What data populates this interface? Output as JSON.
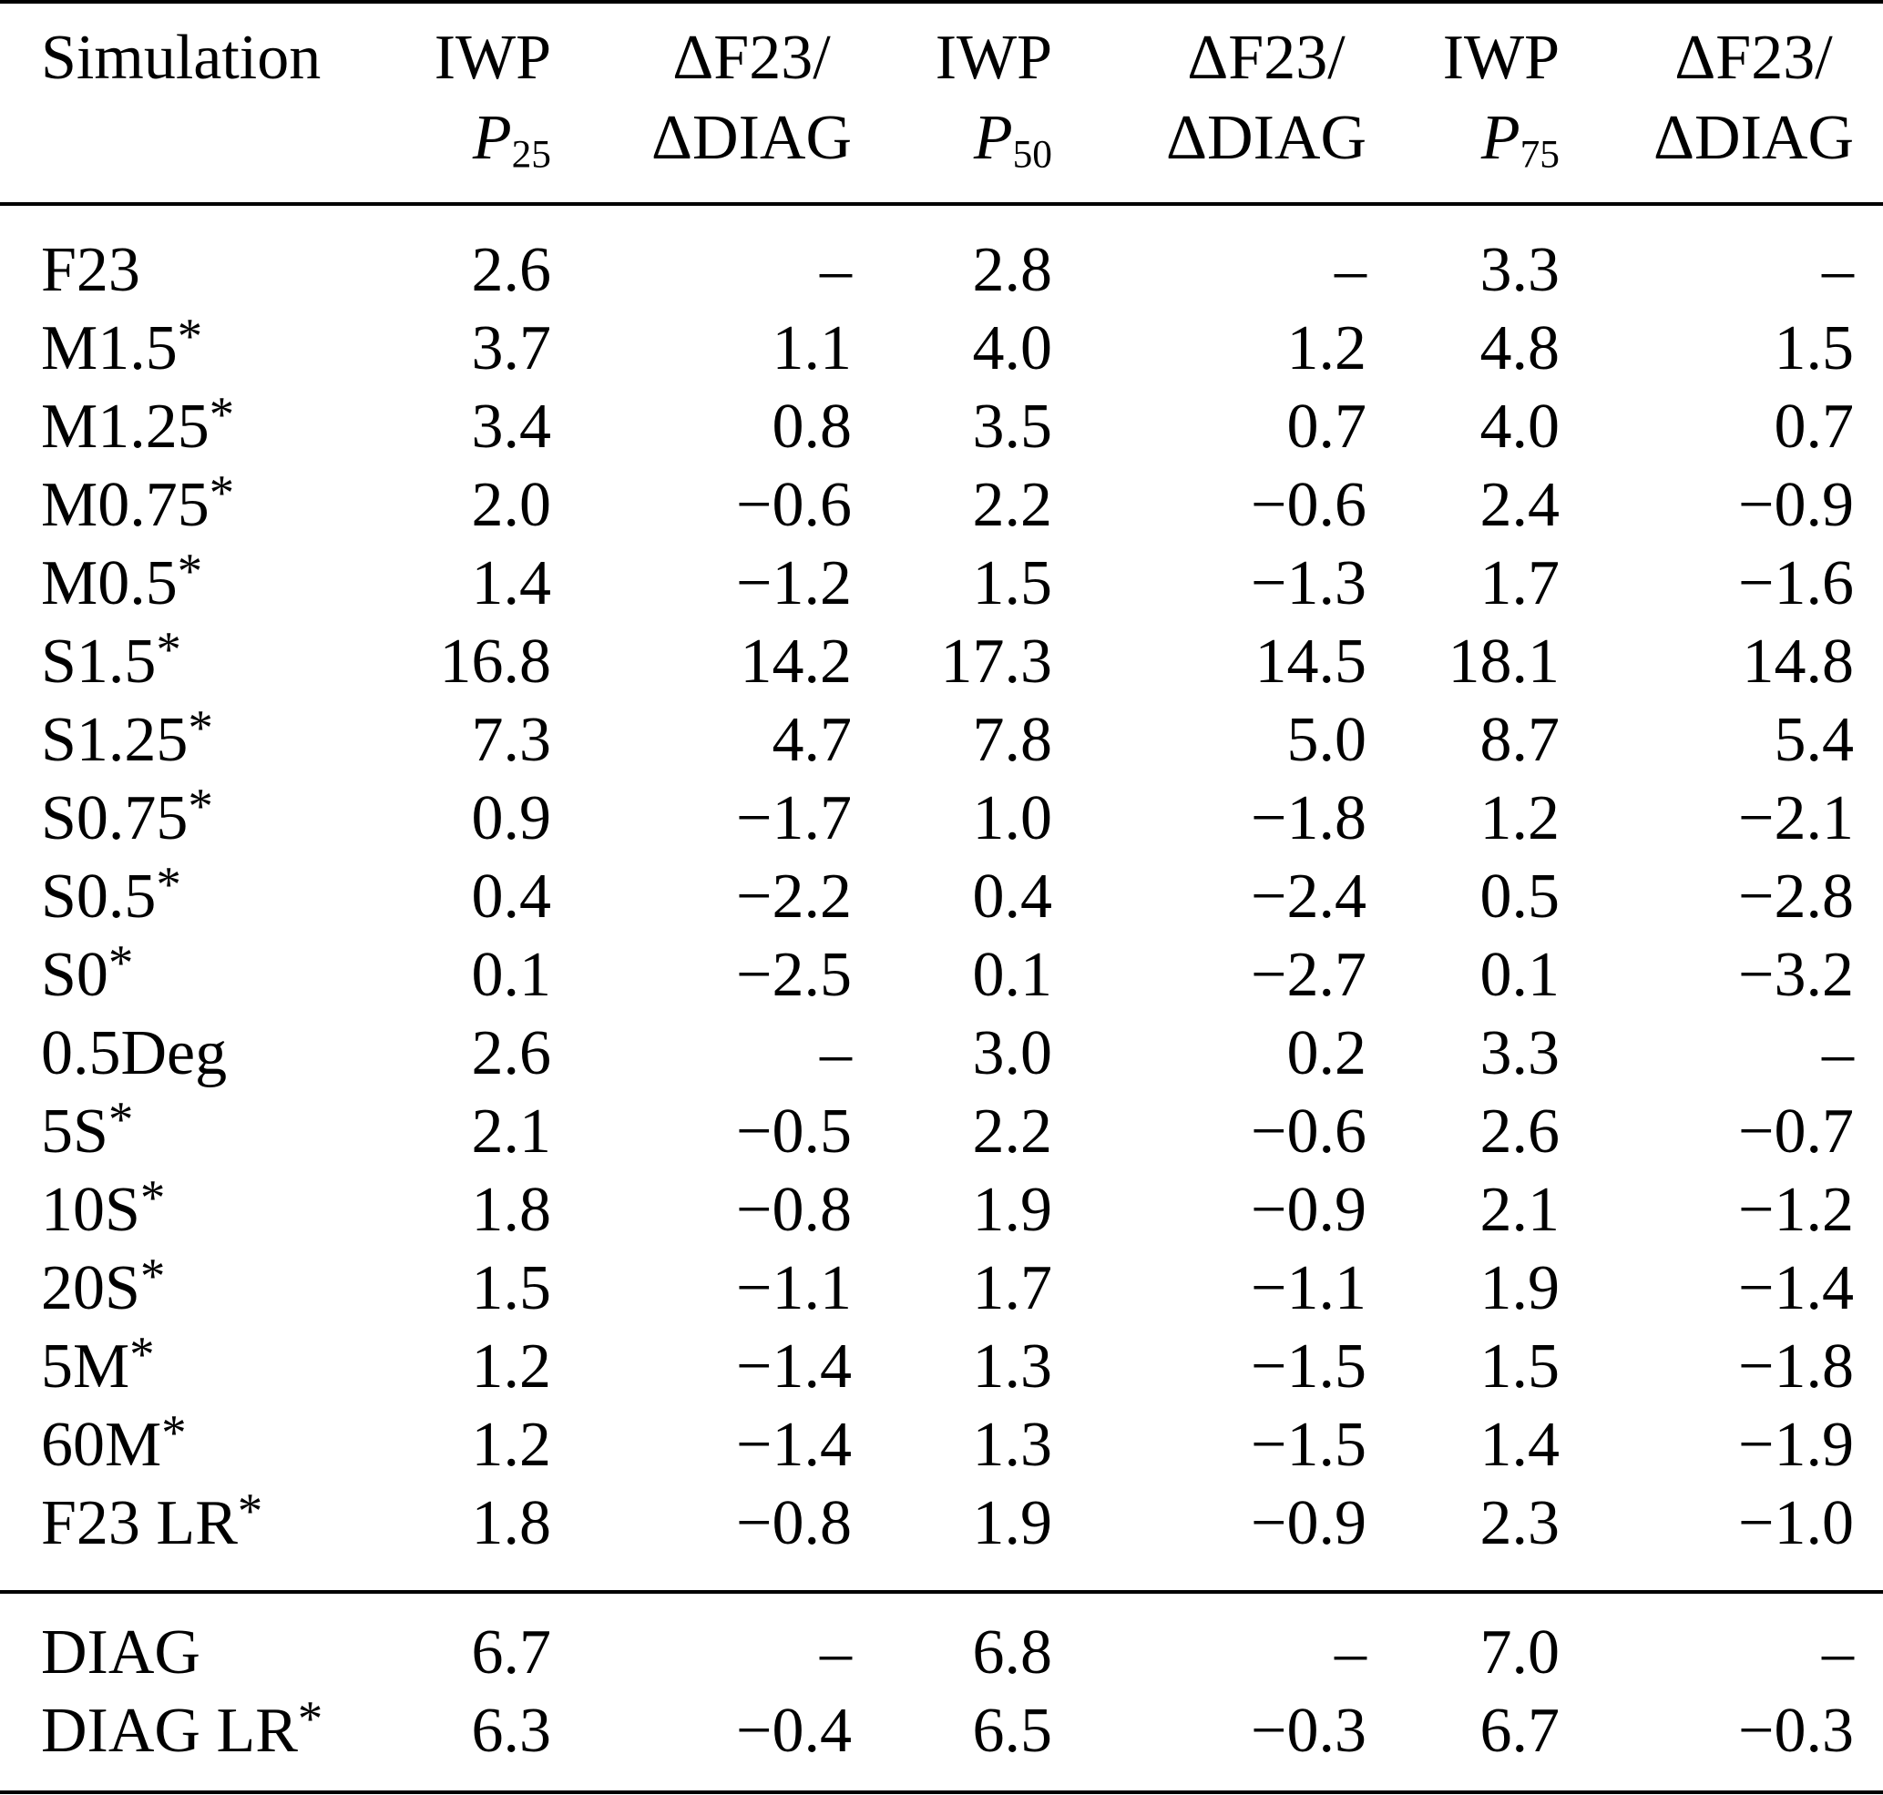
{
  "colors": {
    "background": "#ffffff",
    "text": "#000000",
    "rule": "#000000"
  },
  "table": {
    "missing_marker": "–",
    "columns": [
      {
        "id": "simulation",
        "line1": "Simulation",
        "line2": "",
        "style": "label"
      },
      {
        "id": "iwp-p25",
        "line1": "IWP",
        "line2_italic": "P",
        "line2_sub": "25",
        "style": "iwp"
      },
      {
        "id": "dratio-25",
        "line1": "ΔF23/",
        "line2": "ΔDIAG",
        "style": "delta"
      },
      {
        "id": "iwp-p50",
        "line1": "IWP",
        "line2_italic": "P",
        "line2_sub": "50",
        "style": "iwp"
      },
      {
        "id": "dratio-50",
        "line1": "ΔF23/",
        "line2": "ΔDIAG",
        "style": "delta"
      },
      {
        "id": "iwp-p75",
        "line1": "IWP",
        "line2_italic": "P",
        "line2_sub": "75",
        "style": "iwp"
      },
      {
        "id": "dratio-75",
        "line1": "ΔF23/",
        "line2": "ΔDIAG",
        "style": "delta"
      }
    ],
    "sections": [
      {
        "id": "main",
        "rows": [
          {
            "simulation": "F23",
            "starred": false,
            "values": [
              "2.6",
              "–",
              "2.8",
              "–",
              "3.3",
              "–"
            ]
          },
          {
            "simulation": "M1.5",
            "starred": true,
            "values": [
              "3.7",
              "1.1",
              "4.0",
              "1.2",
              "4.8",
              "1.5"
            ]
          },
          {
            "simulation": "M1.25",
            "starred": true,
            "values": [
              "3.4",
              "0.8",
              "3.5",
              "0.7",
              "4.0",
              "0.7"
            ]
          },
          {
            "simulation": "M0.75",
            "starred": true,
            "values": [
              "2.0",
              "−0.6",
              "2.2",
              "−0.6",
              "2.4",
              "−0.9"
            ]
          },
          {
            "simulation": "M0.5",
            "starred": true,
            "values": [
              "1.4",
              "−1.2",
              "1.5",
              "−1.3",
              "1.7",
              "−1.6"
            ]
          },
          {
            "simulation": "S1.5",
            "starred": true,
            "values": [
              "16.8",
              "14.2",
              "17.3",
              "14.5",
              "18.1",
              "14.8"
            ]
          },
          {
            "simulation": "S1.25",
            "starred": true,
            "values": [
              "7.3",
              "4.7",
              "7.8",
              "5.0",
              "8.7",
              "5.4"
            ]
          },
          {
            "simulation": "S0.75",
            "starred": true,
            "values": [
              "0.9",
              "−1.7",
              "1.0",
              "−1.8",
              "1.2",
              "−2.1"
            ]
          },
          {
            "simulation": "S0.5",
            "starred": true,
            "values": [
              "0.4",
              "−2.2",
              "0.4",
              "−2.4",
              "0.5",
              "−2.8"
            ]
          },
          {
            "simulation": "S0",
            "starred": true,
            "values": [
              "0.1",
              "−2.5",
              "0.1",
              "−2.7",
              "0.1",
              "−3.2"
            ]
          },
          {
            "simulation": "0.5Deg",
            "starred": false,
            "values": [
              "2.6",
              "–",
              "3.0",
              "0.2",
              "3.3",
              "–"
            ]
          },
          {
            "simulation": "5S",
            "starred": true,
            "values": [
              "2.1",
              "−0.5",
              "2.2",
              "−0.6",
              "2.6",
              "−0.7"
            ]
          },
          {
            "simulation": "10S",
            "starred": true,
            "values": [
              "1.8",
              "−0.8",
              "1.9",
              "−0.9",
              "2.1",
              "−1.2"
            ]
          },
          {
            "simulation": "20S",
            "starred": true,
            "values": [
              "1.5",
              "−1.1",
              "1.7",
              "−1.1",
              "1.9",
              "−1.4"
            ]
          },
          {
            "simulation": "5M",
            "starred": true,
            "values": [
              "1.2",
              "−1.4",
              "1.3",
              "−1.5",
              "1.5",
              "−1.8"
            ]
          },
          {
            "simulation": "60M",
            "starred": true,
            "values": [
              "1.2",
              "−1.4",
              "1.3",
              "−1.5",
              "1.4",
              "−1.9"
            ]
          },
          {
            "simulation": "F23 LR",
            "starred": true,
            "values": [
              "1.8",
              "−0.8",
              "1.9",
              "−0.9",
              "2.3",
              "−1.0"
            ]
          }
        ]
      },
      {
        "id": "diag",
        "rows": [
          {
            "simulation": "DIAG",
            "starred": false,
            "values": [
              "6.7",
              "–",
              "6.8",
              "–",
              "7.0",
              "–"
            ]
          },
          {
            "simulation": "DIAG LR",
            "starred": true,
            "values": [
              "6.3",
              "−0.4",
              "6.5",
              "−0.3",
              "6.7",
              "−0.3"
            ]
          }
        ]
      }
    ]
  }
}
